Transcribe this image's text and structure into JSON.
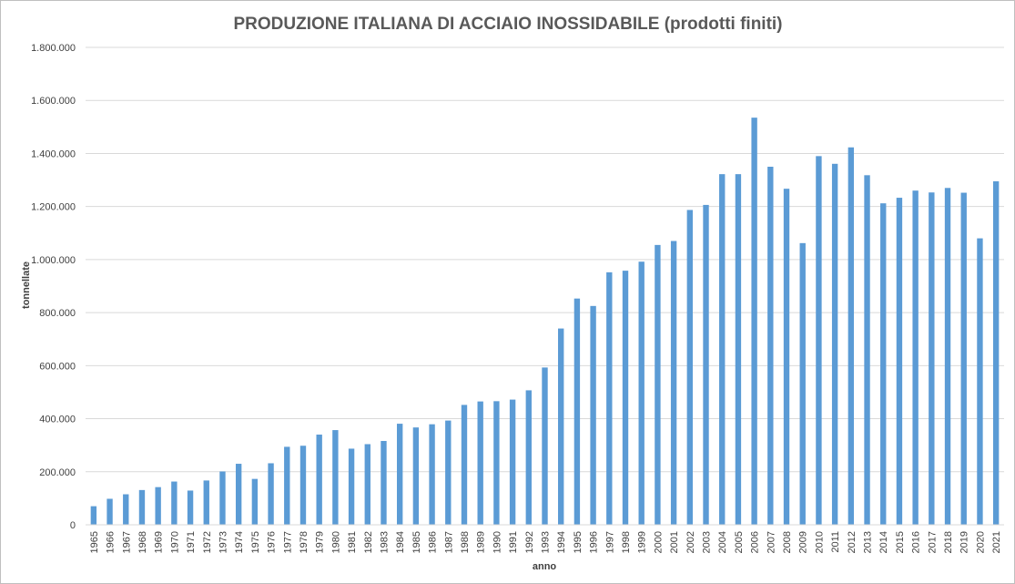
{
  "chart_data": {
    "type": "bar",
    "title": "PRODUZIONE ITALIANA DI ACCIAIO INOSSIDABILE (prodotti finiti)",
    "xlabel": "anno",
    "ylabel": "tonnellate",
    "ylim": [
      0,
      1800000
    ],
    "yticks": [
      0,
      200000,
      400000,
      600000,
      800000,
      1000000,
      1200000,
      1400000,
      1600000,
      1800000
    ],
    "ytick_labels": [
      "0",
      "200.000",
      "400.000",
      "600.000",
      "800.000",
      "1.000.000",
      "1.200.000",
      "1.400.000",
      "1.600.000",
      "1.800.000"
    ],
    "grid": true,
    "legend": "none",
    "bar_color": "#5b9bd5",
    "categories": [
      "1965",
      "1966",
      "1967",
      "1968",
      "1969",
      "1970",
      "1971",
      "1972",
      "1973",
      "1974",
      "1975",
      "1976",
      "1977",
      "1978",
      "1979",
      "1980",
      "1981",
      "1982",
      "1983",
      "1984",
      "1985",
      "1986",
      "1987",
      "1988",
      "1989",
      "1990",
      "1991",
      "1992",
      "1993",
      "1994",
      "1995",
      "1996",
      "1997",
      "1998",
      "1999",
      "2000",
      "2001",
      "2002",
      "2003",
      "2004",
      "2005",
      "2006",
      "2007",
      "2008",
      "2009",
      "2010",
      "2011",
      "2012",
      "2013",
      "2014",
      "2015",
      "2016",
      "2017",
      "2018",
      "2019",
      "2020",
      "2021"
    ],
    "values": [
      70000,
      98000,
      115000,
      131000,
      142000,
      163000,
      129000,
      167000,
      201000,
      230000,
      173000,
      232000,
      294000,
      298000,
      340000,
      357000,
      287000,
      304000,
      316000,
      381000,
      367000,
      379000,
      393000,
      452000,
      465000,
      466000,
      472000,
      507000,
      593000,
      740000,
      853000,
      825000,
      952000,
      958000,
      992000,
      1055000,
      1070000,
      1187000,
      1206000,
      1322000,
      1322000,
      1535000,
      1350000,
      1267000,
      1062000,
      1390000,
      1361000,
      1423000,
      1318000,
      1212000,
      1233000,
      1260000,
      1253000,
      1270000,
      1252000,
      1080000,
      1295000
    ]
  }
}
